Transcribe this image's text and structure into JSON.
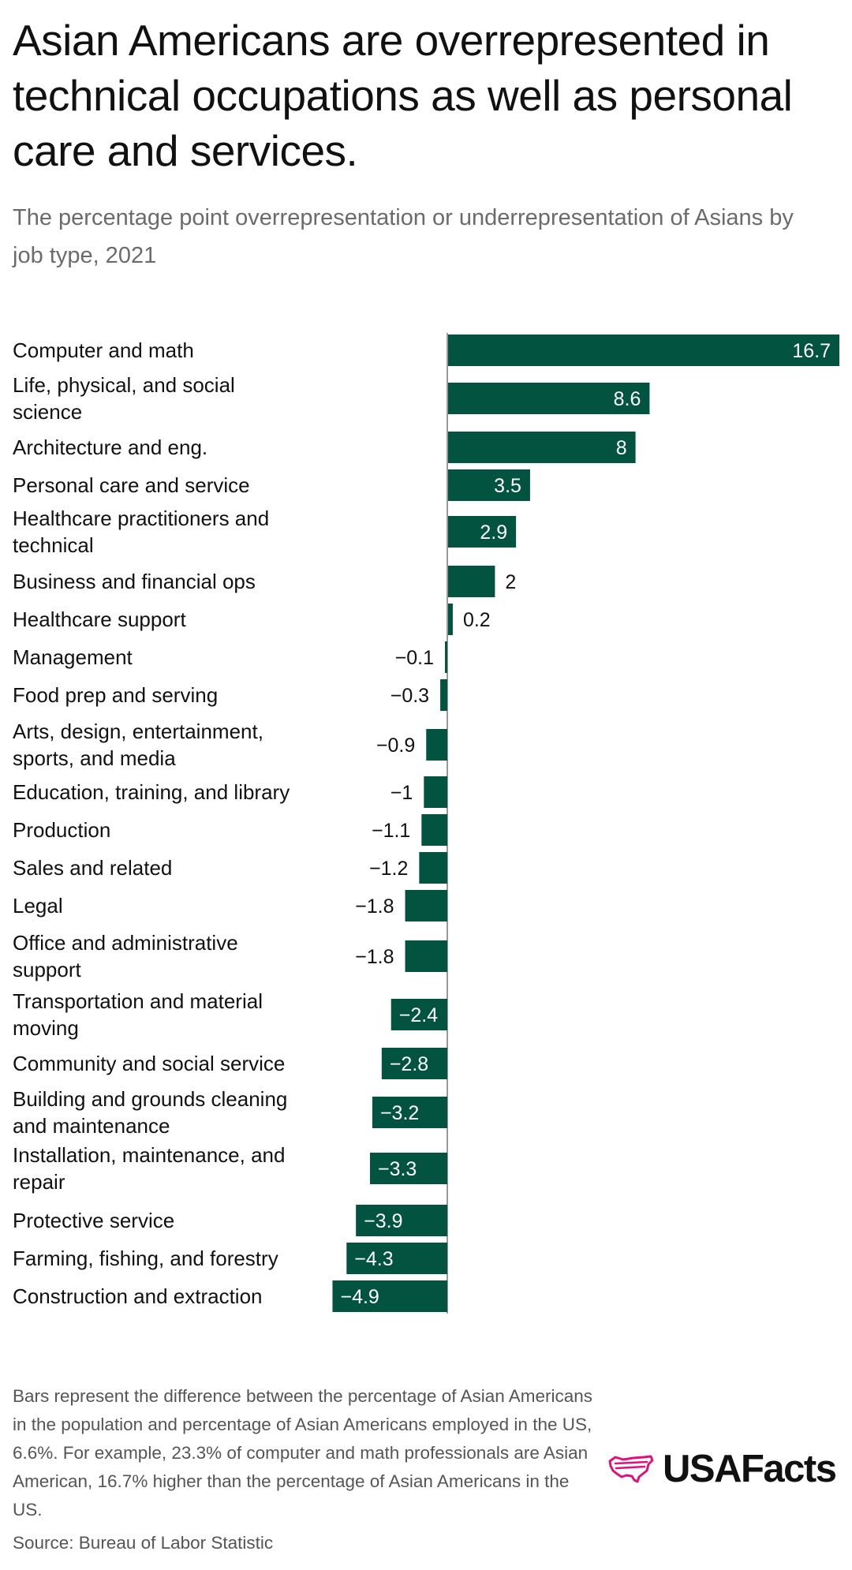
{
  "title": "Asian Americans are overrepresented in technical occupations as well as personal care and services.",
  "subtitle": "The percentage point overrepresentation or underrepresentation of Asians by job type, 2021",
  "chart_data": {
    "type": "bar",
    "orientation": "horizontal",
    "categories": [
      "Computer and math",
      "Life, physical, and social science",
      "Architecture and eng.",
      "Personal care and service",
      "Healthcare practitioners and technical",
      "Business and financial ops",
      "Healthcare support",
      "Management",
      "Food prep and serving",
      "Arts, design, entertainment, sports, and media",
      "Education, training, and library",
      "Production",
      "Sales and related",
      "Legal",
      "Office and administrative support",
      "Transportation and material moving",
      "Community and social service",
      "Building and grounds cleaning and maintenance",
      "Installation, maintenance, and repair",
      "Protective service",
      "Farming, fishing, and forestry",
      "Construction and extraction"
    ],
    "category_lines": [
      [
        "Computer and math"
      ],
      [
        "Life, physical, and social",
        "science"
      ],
      [
        "Architecture and eng."
      ],
      [
        "Personal care and service"
      ],
      [
        "Healthcare practitioners and",
        "technical"
      ],
      [
        "Business and financial ops"
      ],
      [
        "Healthcare support"
      ],
      [
        "Management"
      ],
      [
        "Food prep and serving"
      ],
      [
        "Arts, design, entertainment,",
        "sports, and media"
      ],
      [
        "Education, training, and library"
      ],
      [
        "Production"
      ],
      [
        "Sales and related"
      ],
      [
        "Legal"
      ],
      [
        "Office and administrative",
        "support"
      ],
      [
        "Transportation and material",
        "moving"
      ],
      [
        "Community and social service"
      ],
      [
        "Building and grounds cleaning",
        "and maintenance"
      ],
      [
        "Installation, maintenance, and",
        "repair"
      ],
      [
        "Protective service"
      ],
      [
        "Farming, fishing, and forestry"
      ],
      [
        "Construction and extraction"
      ]
    ],
    "values": [
      16.7,
      8.6,
      8,
      3.5,
      2.9,
      2,
      0.2,
      -0.1,
      -0.3,
      -0.9,
      -1,
      -1.1,
      -1.2,
      -1.8,
      -1.8,
      -2.4,
      -2.8,
      -3.2,
      -3.3,
      -3.9,
      -4.3,
      -4.9
    ],
    "value_labels": [
      "16.7",
      "8.6",
      "8",
      "3.5",
      "2.9",
      "2",
      "0.2",
      "−0.1",
      "−0.3",
      "−0.9",
      "−1",
      "−1.1",
      "−1.2",
      "−1.8",
      "−1.8",
      "−2.4",
      "−2.8",
      "−3.2",
      "−3.3",
      "−3.9",
      "−4.3",
      "−4.9"
    ],
    "xlim": [
      -4.9,
      16.7
    ],
    "bar_color": "#02533f",
    "axis_color": "#999999",
    "xlabel": "",
    "ylabel": ""
  },
  "footnote": "Bars represent the difference between the percentage of Asian Americans in the population and percentage of Asian Americans employed in the US, 6.6%. For example, 23.3% of computer and math professionals are Asian American, 16.7% higher than the percentage of Asian Americans in the US.",
  "source": "Source: Bureau of Labor Statistic",
  "logo": {
    "text": "USAFacts",
    "icon": "us-map-flag-icon",
    "icon_color": "#e0117a"
  }
}
